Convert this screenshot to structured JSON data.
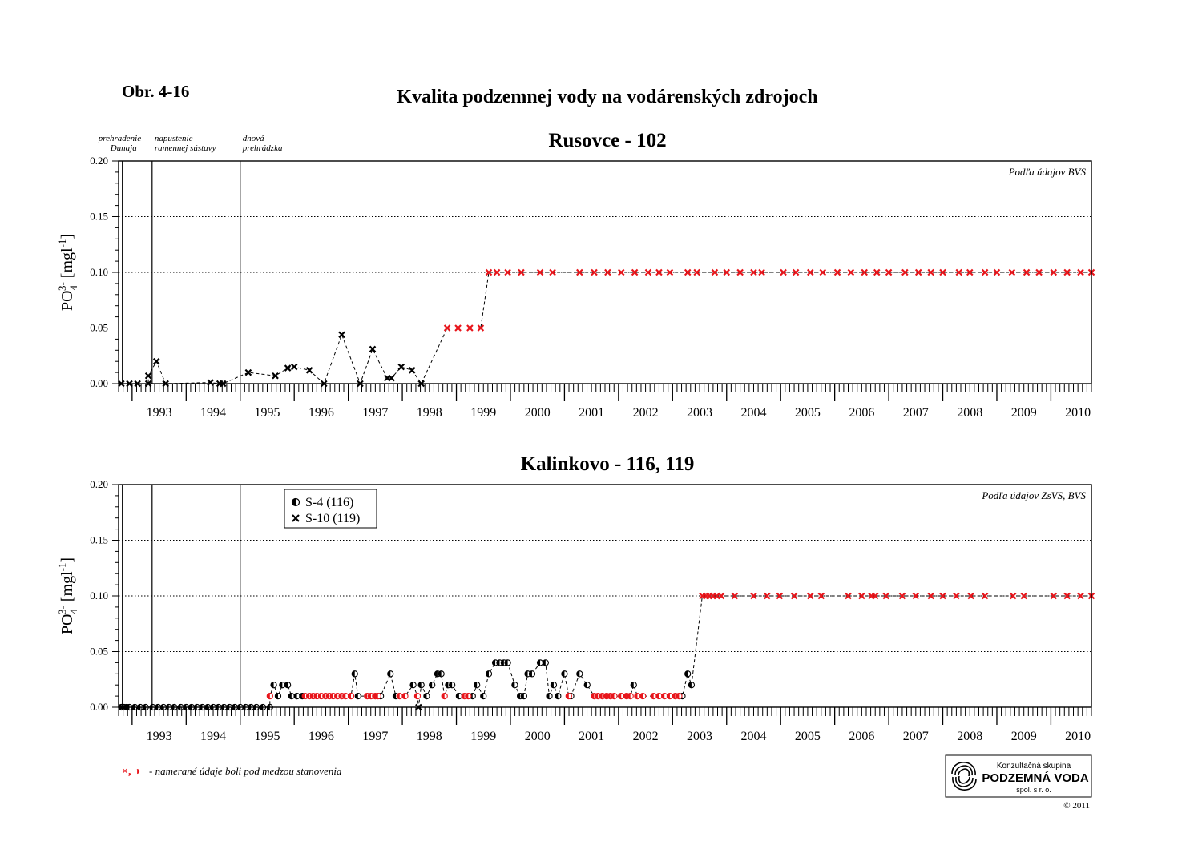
{
  "figure_label": "Obr. 4-16",
  "main_title": "Kvalita podzemnej vody na vodárenských zdrojoch",
  "events": [
    {
      "label_lines": [
        "prehradenie",
        "Dunaja"
      ],
      "date": 1992.82
    },
    {
      "label_lines": [
        "napustenie",
        "ramennej sústavy"
      ],
      "date": 1993.37
    },
    {
      "label_lines": [
        "dnová",
        "prehrádzka"
      ],
      "date": 1995.0
    }
  ],
  "footnote": {
    "symbols": "×, ◑",
    "text": "- namerané údaje boli pod medzou stanovenia"
  },
  "logo": {
    "line1": "Konzultačná skupina",
    "line2": "PODZEMNÁ VODA",
    "line3": "spol. s r. o."
  },
  "copyright": "© 2011",
  "colors": {
    "below_detection_limit": "#e8151b",
    "measured": "#000000",
    "grid": "#000000"
  },
  "icons": {
    "S-4 (116)": "half-filled-circle",
    "S-10 (119)": "x-cross"
  },
  "chart_data": [
    {
      "type": "scatter",
      "title": "Rusovce - 102",
      "source_note": "Podľa údajov BVS",
      "ylabel": "PO₄³⁻ [mgl⁻¹]",
      "xlabel": "",
      "xlim": [
        1992.75,
        2010.75
      ],
      "ylim": [
        0,
        0.2
      ],
      "yticks": [
        0.0,
        0.05,
        0.1,
        0.15,
        0.2
      ],
      "ytick_labels": [
        "0.00",
        "0.05",
        "0.10",
        "0.15",
        "0.20"
      ],
      "xtick_labels": [
        "1993",
        "1994",
        "1995",
        "1996",
        "1997",
        "1998",
        "1999",
        "2000",
        "2001",
        "2002",
        "2003",
        "2004",
        "2005",
        "2006",
        "2007",
        "2008",
        "2009",
        "2010"
      ],
      "grid": "horizontal dotted",
      "line_style": "dashed",
      "series": [
        {
          "marker": "x",
          "points": [
            [
              1992.8,
              0.0
            ],
            [
              1992.95,
              0.0
            ],
            [
              1993.1,
              0.0
            ],
            [
              1993.3,
              0.0
            ],
            [
              1993.3,
              0.007
            ],
            [
              1993.45,
              0.02
            ],
            [
              1993.62,
              0.0
            ],
            [
              1994.45,
              0.001
            ],
            [
              1994.62,
              0.0
            ],
            [
              1994.68,
              0.0
            ],
            [
              1995.15,
              0.01
            ],
            [
              1995.65,
              0.007
            ],
            [
              1995.88,
              0.014
            ],
            [
              1996.0,
              0.015
            ],
            [
              1996.28,
              0.012
            ],
            [
              1996.55,
              0.0
            ],
            [
              1996.88,
              0.044
            ],
            [
              1997.22,
              0.0
            ],
            [
              1997.45,
              0.031
            ],
            [
              1997.72,
              0.005
            ],
            [
              1997.8,
              0.005
            ],
            [
              1997.98,
              0.015
            ],
            [
              1998.18,
              0.012
            ],
            [
              1998.35,
              0.0
            ]
          ],
          "below_limit_points": [
            [
              1998.83,
              0.05
            ],
            [
              1999.03,
              0.05
            ],
            [
              1999.25,
              0.05
            ],
            [
              1999.45,
              0.05
            ],
            [
              1999.6,
              0.1
            ],
            [
              1999.75,
              0.1
            ],
            [
              1999.95,
              0.1
            ],
            [
              2000.2,
              0.1
            ],
            [
              2000.55,
              0.1
            ],
            [
              2000.78,
              0.1
            ],
            [
              2001.28,
              0.1
            ],
            [
              2001.55,
              0.1
            ],
            [
              2001.8,
              0.1
            ],
            [
              2002.05,
              0.1
            ],
            [
              2002.3,
              0.1
            ],
            [
              2002.55,
              0.1
            ],
            [
              2002.75,
              0.1
            ],
            [
              2002.95,
              0.1
            ],
            [
              2003.28,
              0.1
            ],
            [
              2003.45,
              0.1
            ],
            [
              2003.78,
              0.1
            ],
            [
              2004.0,
              0.1
            ],
            [
              2004.25,
              0.1
            ],
            [
              2004.5,
              0.1
            ],
            [
              2004.65,
              0.1
            ],
            [
              2005.05,
              0.1
            ],
            [
              2005.28,
              0.1
            ],
            [
              2005.55,
              0.1
            ],
            [
              2005.78,
              0.1
            ],
            [
              2006.05,
              0.1
            ],
            [
              2006.3,
              0.1
            ],
            [
              2006.55,
              0.1
            ],
            [
              2006.78,
              0.1
            ],
            [
              2007.0,
              0.1
            ],
            [
              2007.3,
              0.1
            ],
            [
              2007.55,
              0.1
            ],
            [
              2007.78,
              0.1
            ],
            [
              2008.0,
              0.1
            ],
            [
              2008.3,
              0.1
            ],
            [
              2008.5,
              0.1
            ],
            [
              2008.78,
              0.1
            ],
            [
              2009.0,
              0.1
            ],
            [
              2009.28,
              0.1
            ],
            [
              2009.55,
              0.1
            ],
            [
              2009.78,
              0.1
            ],
            [
              2010.05,
              0.1
            ],
            [
              2010.3,
              0.1
            ],
            [
              2010.55,
              0.1
            ],
            [
              2010.75,
              0.1
            ]
          ]
        }
      ]
    },
    {
      "type": "scatter",
      "title": "Kalinkovo - 116, 119",
      "source_note": "Podľa údajov ZsVS, BVS",
      "ylabel": "PO₄³⁻ [mgl⁻¹]",
      "xlabel": "",
      "xlim": [
        1992.75,
        2010.75
      ],
      "ylim": [
        0,
        0.2
      ],
      "yticks": [
        0.0,
        0.05,
        0.1,
        0.15,
        0.2
      ],
      "ytick_labels": [
        "0.00",
        "0.05",
        "0.10",
        "0.15",
        "0.20"
      ],
      "xtick_labels": [
        "1993",
        "1994",
        "1995",
        "1996",
        "1997",
        "1998",
        "1999",
        "2000",
        "2001",
        "2002",
        "2003",
        "2004",
        "2005",
        "2006",
        "2007",
        "2008",
        "2009",
        "2010"
      ],
      "grid": "horizontal dotted",
      "line_style": "dashed",
      "legend": {
        "position": "top-left",
        "entries": [
          "S-4 (116)",
          "S-10 (119)"
        ]
      },
      "series": [
        {
          "name": "S-4 (116)",
          "marker": "half-filled-circle",
          "points": [
            [
              1992.8,
              0.0
            ],
            [
              1992.85,
              0.0
            ],
            [
              1992.9,
              0.0
            ],
            [
              1992.95,
              0.0
            ],
            [
              1993.05,
              0.0
            ],
            [
              1993.15,
              0.0
            ],
            [
              1993.25,
              0.0
            ],
            [
              1993.38,
              0.0
            ],
            [
              1993.48,
              0.0
            ],
            [
              1993.58,
              0.0
            ],
            [
              1993.68,
              0.0
            ],
            [
              1993.78,
              0.0
            ],
            [
              1993.9,
              0.0
            ],
            [
              1994.0,
              0.0
            ],
            [
              1994.1,
              0.0
            ],
            [
              1994.2,
              0.0
            ],
            [
              1994.3,
              0.0
            ],
            [
              1994.4,
              0.0
            ],
            [
              1994.5,
              0.0
            ],
            [
              1994.6,
              0.0
            ],
            [
              1994.7,
              0.0
            ],
            [
              1994.8,
              0.0
            ],
            [
              1994.9,
              0.0
            ],
            [
              1995.0,
              0.0
            ],
            [
              1995.1,
              0.0
            ],
            [
              1995.2,
              0.0
            ],
            [
              1995.3,
              0.0
            ],
            [
              1995.42,
              0.0
            ],
            [
              1995.55,
              0.0
            ],
            [
              1995.62,
              0.02
            ],
            [
              1995.7,
              0.01
            ],
            [
              1995.78,
              0.02
            ],
            [
              1995.88,
              0.02
            ],
            [
              1995.95,
              0.01
            ],
            [
              1996.05,
              0.01
            ],
            [
              1996.15,
              0.01
            ],
            [
              1997.12,
              0.03
            ],
            [
              1997.18,
              0.01
            ],
            [
              1997.6,
              0.01
            ],
            [
              1997.78,
              0.03
            ],
            [
              1997.88,
              0.01
            ],
            [
              1998.2,
              0.02
            ],
            [
              1998.35,
              0.02
            ],
            [
              1998.45,
              0.01
            ],
            [
              1998.55,
              0.02
            ],
            [
              1998.65,
              0.03
            ],
            [
              1998.72,
              0.03
            ],
            [
              1998.85,
              0.02
            ],
            [
              1998.92,
              0.02
            ],
            [
              1999.05,
              0.01
            ],
            [
              1999.3,
              0.01
            ],
            [
              1999.38,
              0.02
            ],
            [
              1999.5,
              0.01
            ],
            [
              1999.6,
              0.03
            ],
            [
              1999.72,
              0.04
            ],
            [
              1999.8,
              0.04
            ],
            [
              1999.88,
              0.04
            ],
            [
              1999.95,
              0.04
            ],
            [
              2000.08,
              0.02
            ],
            [
              2000.18,
              0.01
            ],
            [
              2000.25,
              0.01
            ],
            [
              2000.32,
              0.03
            ],
            [
              2000.4,
              0.03
            ],
            [
              2000.55,
              0.04
            ],
            [
              2000.65,
              0.04
            ],
            [
              2000.72,
              0.01
            ],
            [
              2000.8,
              0.02
            ],
            [
              2000.88,
              0.01
            ],
            [
              2001.0,
              0.03
            ],
            [
              2001.12,
              0.01
            ],
            [
              2001.28,
              0.03
            ],
            [
              2001.42,
              0.02
            ],
            [
              2002.28,
              0.02
            ],
            [
              2003.18,
              0.01
            ],
            [
              2003.28,
              0.03
            ],
            [
              2003.35,
              0.02
            ]
          ],
          "below_limit_points": [
            [
              1995.55,
              0.01
            ],
            [
              1996.2,
              0.01
            ],
            [
              1996.28,
              0.01
            ],
            [
              1996.35,
              0.01
            ],
            [
              1996.42,
              0.01
            ],
            [
              1996.5,
              0.01
            ],
            [
              1996.58,
              0.01
            ],
            [
              1996.65,
              0.01
            ],
            [
              1996.72,
              0.01
            ],
            [
              1996.8,
              0.01
            ],
            [
              1996.88,
              0.01
            ],
            [
              1996.95,
              0.01
            ],
            [
              1997.05,
              0.01
            ],
            [
              1997.35,
              0.01
            ],
            [
              1997.42,
              0.01
            ],
            [
              1997.5,
              0.01
            ],
            [
              1997.55,
              0.01
            ],
            [
              1997.95,
              0.01
            ],
            [
              1998.05,
              0.01
            ],
            [
              1998.28,
              0.01
            ],
            [
              1998.78,
              0.01
            ],
            [
              1999.15,
              0.01
            ],
            [
              1999.22,
              0.01
            ],
            [
              2001.08,
              0.01
            ],
            [
              2001.55,
              0.01
            ],
            [
              2001.62,
              0.01
            ],
            [
              2001.7,
              0.01
            ],
            [
              2001.78,
              0.01
            ],
            [
              2001.85,
              0.01
            ],
            [
              2001.92,
              0.01
            ],
            [
              2002.05,
              0.01
            ],
            [
              2002.15,
              0.01
            ],
            [
              2002.22,
              0.01
            ],
            [
              2002.35,
              0.01
            ],
            [
              2002.45,
              0.01
            ],
            [
              2002.65,
              0.01
            ],
            [
              2002.75,
              0.01
            ],
            [
              2002.85,
              0.01
            ],
            [
              2002.95,
              0.01
            ],
            [
              2003.05,
              0.01
            ],
            [
              2003.12,
              0.01
            ]
          ]
        },
        {
          "name": "S-10 (119)",
          "marker": "x",
          "points": [
            [
              1998.3,
              0.0
            ]
          ],
          "below_limit_points": [
            [
              2003.55,
              0.1
            ],
            [
              2003.62,
              0.1
            ],
            [
              2003.68,
              0.1
            ],
            [
              2003.75,
              0.1
            ],
            [
              2003.82,
              0.1
            ],
            [
              2003.9,
              0.1
            ],
            [
              2004.15,
              0.1
            ],
            [
              2004.5,
              0.1
            ],
            [
              2004.75,
              0.1
            ],
            [
              2004.98,
              0.1
            ],
            [
              2005.25,
              0.1
            ],
            [
              2005.55,
              0.1
            ],
            [
              2005.75,
              0.1
            ],
            [
              2006.25,
              0.1
            ],
            [
              2006.5,
              0.1
            ],
            [
              2006.68,
              0.1
            ],
            [
              2006.75,
              0.1
            ],
            [
              2006.95,
              0.1
            ],
            [
              2007.25,
              0.1
            ],
            [
              2007.5,
              0.1
            ],
            [
              2007.78,
              0.1
            ],
            [
              2008.0,
              0.1
            ],
            [
              2008.25,
              0.1
            ],
            [
              2008.52,
              0.1
            ],
            [
              2008.78,
              0.1
            ],
            [
              2009.3,
              0.1
            ],
            [
              2009.5,
              0.1
            ],
            [
              2010.05,
              0.1
            ],
            [
              2010.3,
              0.1
            ],
            [
              2010.55,
              0.1
            ],
            [
              2010.75,
              0.1
            ]
          ]
        }
      ]
    }
  ]
}
